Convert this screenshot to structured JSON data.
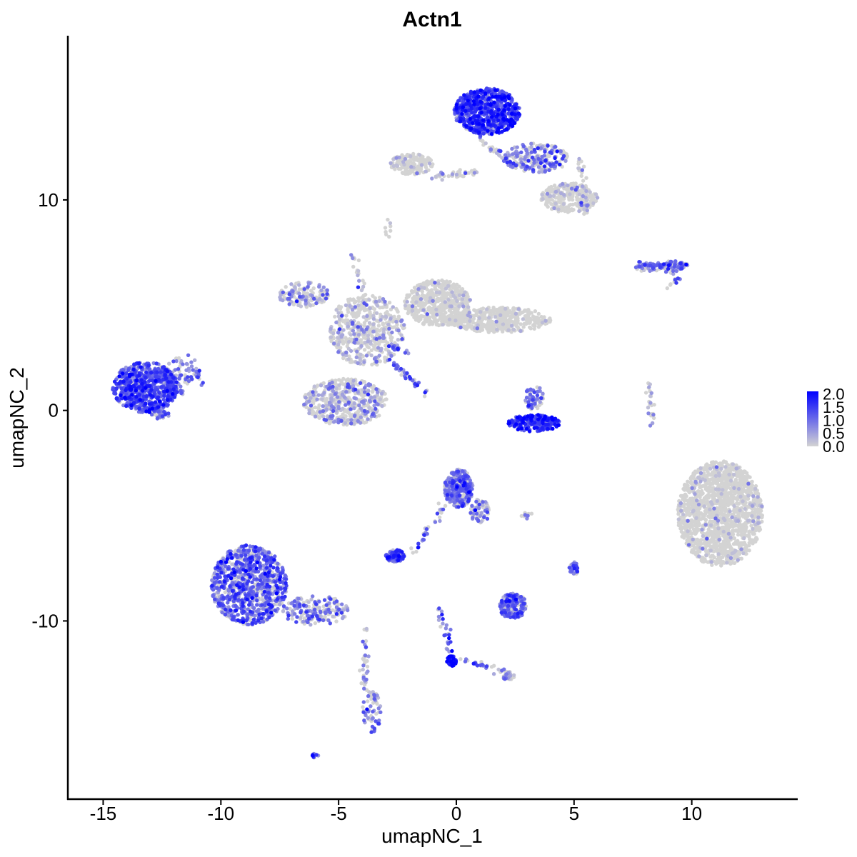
{
  "chart_data": {
    "type": "scatter",
    "title": "Actn1",
    "xlabel": "umapNC_1",
    "ylabel": "umapNC_2",
    "xlim": [
      -16.5,
      14.5
    ],
    "ylim": [
      -18.5,
      17.8
    ],
    "x_ticks": [
      -15,
      -10,
      -5,
      0,
      5,
      10
    ],
    "x_tick_labels": [
      "-15",
      "-10",
      "-5",
      "0",
      "5",
      "10"
    ],
    "y_ticks": [
      -10,
      0,
      10
    ],
    "y_tick_labels": [
      "-10",
      "0",
      "10"
    ],
    "color_scale": {
      "low": "#d3d3d3",
      "high": "#0000ff",
      "min": 0,
      "max": 2.1,
      "legend_ticks": [
        2.0,
        1.5,
        1.0,
        0.5,
        0.0
      ],
      "legend_labels": [
        "2.0",
        "1.5",
        "1.0",
        "0.5",
        "0.0"
      ]
    },
    "legend_position": "right",
    "grid": false,
    "clusters": [
      {
        "cx": -13.2,
        "cy": 1.1,
        "rx": 1.4,
        "ry": 1.2,
        "n": 700,
        "mean_expr": 1.2
      },
      {
        "cx": -11.9,
        "cy": 1.6,
        "rx": 0.7,
        "ry": 0.9,
        "n": 80,
        "mean_expr": 1.0
      },
      {
        "cx": -8.8,
        "cy": -8.3,
        "rx": 1.6,
        "ry": 1.9,
        "n": 900,
        "mean_expr": 1.0
      },
      {
        "cx": -6.0,
        "cy": -9.5,
        "rx": 1.4,
        "ry": 0.7,
        "n": 180,
        "mean_expr": 0.8
      },
      {
        "cx": -3.6,
        "cy": -14.3,
        "rx": 0.4,
        "ry": 1.0,
        "n": 60,
        "mean_expr": 0.8
      },
      {
        "cx": -4.7,
        "cy": 0.4,
        "rx": 1.8,
        "ry": 1.1,
        "n": 500,
        "mean_expr": 0.5
      },
      {
        "cx": -3.8,
        "cy": 3.8,
        "rx": 1.6,
        "ry": 1.7,
        "n": 450,
        "mean_expr": 0.4
      },
      {
        "cx": -6.5,
        "cy": 5.5,
        "rx": 1.1,
        "ry": 0.6,
        "n": 140,
        "mean_expr": 0.6
      },
      {
        "cx": -0.8,
        "cy": 5.1,
        "rx": 1.4,
        "ry": 1.1,
        "n": 500,
        "mean_expr": 0.1
      },
      {
        "cx": 1.8,
        "cy": 4.3,
        "rx": 2.2,
        "ry": 0.6,
        "n": 450,
        "mean_expr": 0.1
      },
      {
        "cx": 1.3,
        "cy": 14.2,
        "rx": 1.4,
        "ry": 1.1,
        "n": 700,
        "mean_expr": 1.4
      },
      {
        "cx": 3.4,
        "cy": 12.0,
        "rx": 1.4,
        "ry": 0.7,
        "n": 220,
        "mean_expr": 0.8
      },
      {
        "cx": 4.8,
        "cy": 10.1,
        "rx": 1.2,
        "ry": 0.7,
        "n": 280,
        "mean_expr": 0.2
      },
      {
        "cx": -1.9,
        "cy": 11.7,
        "rx": 0.9,
        "ry": 0.5,
        "n": 180,
        "mean_expr": 0.15
      },
      {
        "cx": 3.3,
        "cy": -0.6,
        "rx": 1.1,
        "ry": 0.4,
        "n": 220,
        "mean_expr": 1.5
      },
      {
        "cx": 3.3,
        "cy": 0.6,
        "rx": 0.4,
        "ry": 0.6,
        "n": 60,
        "mean_expr": 0.8
      },
      {
        "cx": 11.2,
        "cy": -4.9,
        "rx": 1.8,
        "ry": 2.5,
        "n": 1500,
        "mean_expr": 0.1
      },
      {
        "cx": 9.2,
        "cy": 6.9,
        "rx": 0.7,
        "ry": 0.2,
        "n": 70,
        "mean_expr": 1.0
      },
      {
        "cx": 8.1,
        "cy": 6.8,
        "rx": 0.5,
        "ry": 0.2,
        "n": 30,
        "mean_expr": 0.9
      },
      {
        "cx": 0.1,
        "cy": -3.7,
        "rx": 0.6,
        "ry": 0.9,
        "n": 320,
        "mean_expr": 0.9
      },
      {
        "cx": 1.0,
        "cy": -4.8,
        "rx": 0.4,
        "ry": 0.6,
        "n": 60,
        "mean_expr": 0.8
      },
      {
        "cx": -2.6,
        "cy": -6.9,
        "rx": 0.4,
        "ry": 0.3,
        "n": 90,
        "mean_expr": 1.2
      },
      {
        "cx": 2.4,
        "cy": -9.3,
        "rx": 0.6,
        "ry": 0.6,
        "n": 180,
        "mean_expr": 1.0
      },
      {
        "cx": -0.2,
        "cy": -11.9,
        "rx": 0.2,
        "ry": 0.25,
        "n": 50,
        "mean_expr": 1.8
      },
      {
        "cx": 2.2,
        "cy": -12.6,
        "rx": 0.3,
        "ry": 0.2,
        "n": 40,
        "mean_expr": 0.5
      },
      {
        "cx": 5.0,
        "cy": -7.5,
        "rx": 0.2,
        "ry": 0.3,
        "n": 30,
        "mean_expr": 1.1
      },
      {
        "cx": -12.6,
        "cy": -0.2,
        "rx": 0.4,
        "ry": 0.2,
        "n": 30,
        "mean_expr": 1.0
      },
      {
        "cx": -6.0,
        "cy": -16.4,
        "rx": 0.15,
        "ry": 0.1,
        "n": 10,
        "mean_expr": 1.0
      }
    ],
    "paths": [
      {
        "from": [
          -10.8,
          1.3
        ],
        "to": [
          -11.4,
          2.6
        ],
        "n": 20,
        "mean_expr": 0.9
      },
      {
        "from": [
          -4.4,
          7.4
        ],
        "to": [
          -3.4,
          3.3
        ],
        "n": 35,
        "mean_expr": 0.5
      },
      {
        "from": [
          -2.8,
          2.4
        ],
        "to": [
          -1.2,
          0.7
        ],
        "n": 40,
        "mean_expr": 1.1
      },
      {
        "from": [
          -4.6,
          4.2
        ],
        "to": [
          -1.9,
          2.6
        ],
        "n": 35,
        "mean_expr": 0.9
      },
      {
        "from": [
          -0.9,
          11.1
        ],
        "to": [
          0.9,
          11.3
        ],
        "n": 40,
        "mean_expr": 0.5
      },
      {
        "from": [
          0.9,
          13.0
        ],
        "to": [
          2.4,
          11.6
        ],
        "n": 40,
        "mean_expr": 0.7
      },
      {
        "from": [
          5.2,
          12.0
        ],
        "to": [
          5.5,
          9.2
        ],
        "n": 30,
        "mean_expr": 0.3
      },
      {
        "from": [
          -3.8,
          -10.3
        ],
        "to": [
          -3.9,
          -13.4
        ],
        "n": 35,
        "mean_expr": 0.6
      },
      {
        "from": [
          -1.9,
          -6.8
        ],
        "to": [
          -0.5,
          -4.5
        ],
        "n": 30,
        "mean_expr": 0.8
      },
      {
        "from": [
          -0.8,
          -9.3
        ],
        "to": [
          -0.2,
          -11.5
        ],
        "n": 25,
        "mean_expr": 1.0
      },
      {
        "from": [
          0.2,
          -11.8
        ],
        "to": [
          2.0,
          -12.4
        ],
        "n": 25,
        "mean_expr": 0.9
      },
      {
        "from": [
          8.2,
          1.2
        ],
        "to": [
          8.3,
          -0.8
        ],
        "n": 25,
        "mean_expr": 0.5
      },
      {
        "from": [
          7.8,
          7.0
        ],
        "to": [
          9.4,
          6.5
        ],
        "n": 25,
        "mean_expr": 1.0
      },
      {
        "from": [
          9.5,
          6.3
        ],
        "to": [
          8.9,
          5.8
        ],
        "n": 10,
        "mean_expr": 0.9
      },
      {
        "from": [
          2.9,
          -5.0
        ],
        "to": [
          3.1,
          -4.9
        ],
        "n": 10,
        "mean_expr": 0.7
      },
      {
        "from": [
          -2.8,
          9.1
        ],
        "to": [
          -2.9,
          8.3
        ],
        "n": 8,
        "mean_expr": 0.3
      }
    ]
  }
}
